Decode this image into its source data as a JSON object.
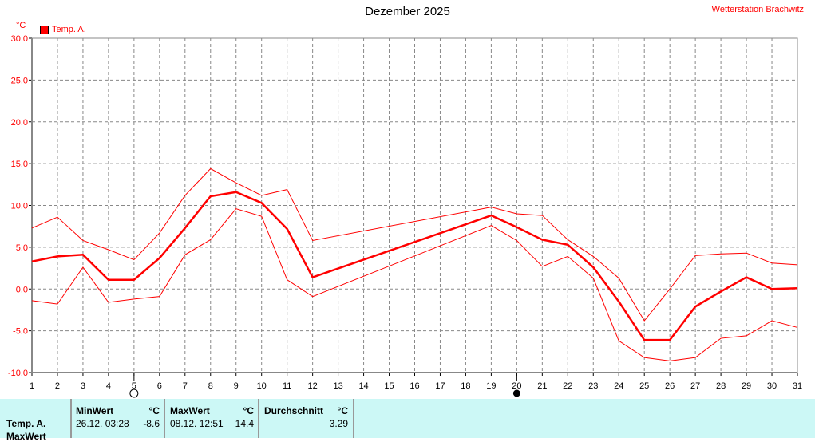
{
  "chart_data": {
    "type": "line",
    "title": "Dezember 2025",
    "station": "Wetterstation Brachwitz",
    "ylabel": "°C",
    "ylim": [
      -10,
      30
    ],
    "yticks": [
      "30.0",
      "25.0",
      "20.0",
      "15.0",
      "10.0",
      "5.0",
      "0.0",
      "-5.0",
      "-10.0"
    ],
    "xlim": [
      1,
      31
    ],
    "x": [
      1,
      2,
      3,
      4,
      5,
      6,
      7,
      8,
      9,
      10,
      11,
      12,
      13,
      14,
      15,
      16,
      17,
      18,
      19,
      20,
      21,
      22,
      23,
      24,
      25,
      26,
      27,
      28,
      29,
      30,
      31
    ],
    "grid": true,
    "legend": "top-left",
    "series": [
      {
        "name": "Temp. A.",
        "role": "average",
        "color": "#ff0000",
        "values": [
          3.3,
          3.9,
          4.1,
          1.1,
          1.1,
          3.7,
          7.3,
          11.1,
          11.6,
          10.3,
          7.2,
          1.4,
          null,
          null,
          null,
          null,
          null,
          null,
          8.8,
          7.4,
          5.9,
          5.3,
          2.6,
          -1.5,
          -6.1,
          -6.1,
          -2.1,
          -0.3,
          1.4,
          0.0,
          0.1
        ]
      },
      {
        "role": "max",
        "color": "#ff0000",
        "values": [
          7.3,
          8.6,
          5.8,
          4.7,
          3.5,
          6.7,
          11.2,
          14.4,
          12.7,
          11.2,
          11.9,
          5.8,
          null,
          null,
          null,
          null,
          null,
          null,
          9.8,
          9.0,
          8.8,
          5.9,
          3.9,
          1.3,
          -3.8,
          0.0,
          4.0,
          4.2,
          4.3,
          3.1,
          2.9
        ]
      },
      {
        "role": "min",
        "color": "#ff0000",
        "values": [
          -1.4,
          -1.8,
          2.6,
          -1.6,
          -1.2,
          -0.9,
          4.1,
          5.9,
          9.6,
          8.7,
          1.1,
          -0.9,
          null,
          null,
          null,
          null,
          null,
          null,
          7.6,
          5.8,
          2.7,
          3.9,
          1.3,
          -6.2,
          -8.2,
          -8.6,
          -8.2,
          -5.9,
          -5.6,
          -3.8,
          -4.6
        ]
      }
    ],
    "moon_phases": [
      {
        "day": 5,
        "phase": "full-moon"
      },
      {
        "day": 20,
        "phase": "new-moon"
      }
    ]
  },
  "table": {
    "row_label": "Temp. A.",
    "row_label2": "MaxWert",
    "min": {
      "header": "MinWert",
      "unit": "°C",
      "date": "26.12.  03:28",
      "value": "-8.6"
    },
    "max": {
      "header": "MaxWert",
      "unit": "°C",
      "date": "08.12.  12:51",
      "value": "14.4"
    },
    "avg": {
      "header": "Durchschnitt",
      "unit": "°C",
      "value": "3.29"
    }
  }
}
